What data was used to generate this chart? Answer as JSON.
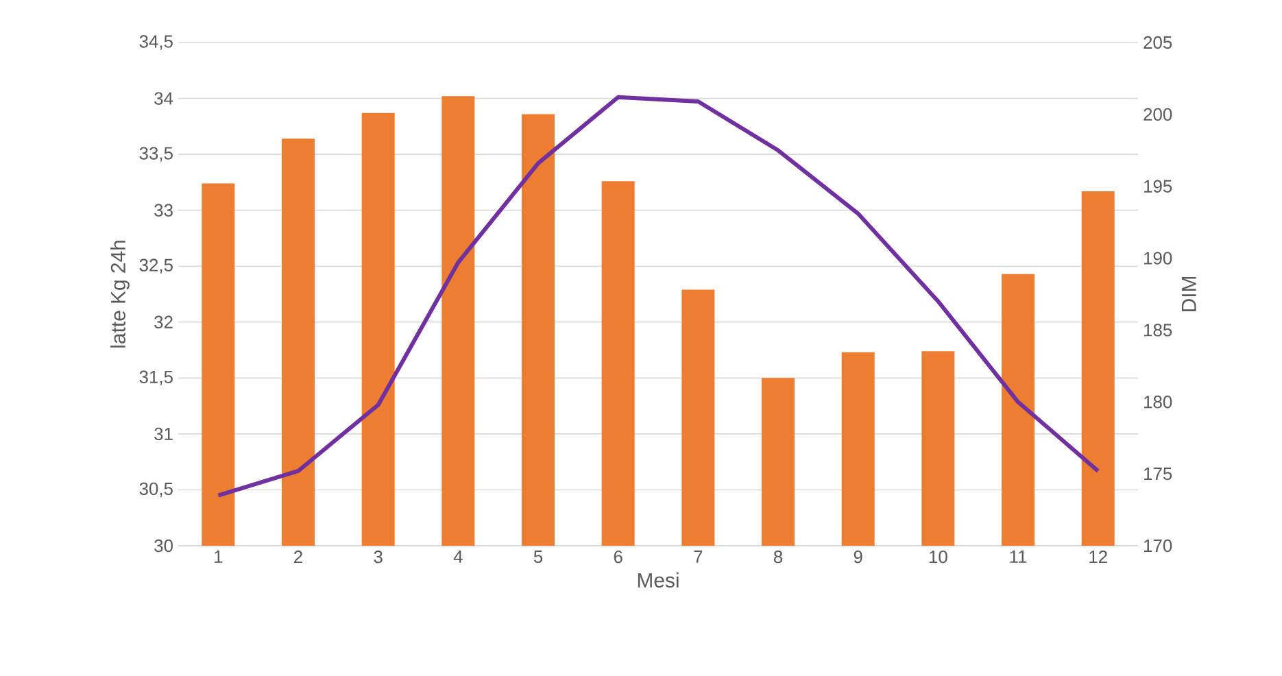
{
  "chart_data": {
    "type": "bar",
    "xlabel": "Mesi",
    "ylabel": "latte Kg 24h",
    "y2label": "DIM",
    "categories": [
      "1",
      "2",
      "3",
      "4",
      "5",
      "6",
      "7",
      "8",
      "9",
      "10",
      "11",
      "12"
    ],
    "series": [
      {
        "color": "#ed7d31",
        "values": [
          33.24,
          33.64,
          33.87,
          34.02,
          33.86,
          33.26,
          32.29,
          31.5,
          31.73,
          31.74,
          32.43,
          33.17
        ]
      },
      {
        "type": "line",
        "axis": "y2",
        "color": "#7030a0",
        "values": [
          173.5,
          175.2,
          179.8,
          189.7,
          196.6,
          201.2,
          200.9,
          197.5,
          193.1,
          187.0,
          180.0,
          175.2
        ]
      }
    ],
    "ylim": [
      30,
      34.5
    ],
    "yticks": [
      30,
      {
        "value": 30.5,
        "label": "30,5"
      },
      31,
      {
        "value": 31.5,
        "label": "31,5"
      },
      32,
      {
        "value": 32.5,
        "label": "32,5"
      },
      33,
      {
        "value": 33.5,
        "label": "33,5"
      },
      34,
      {
        "value": 34.5,
        "label": "34,5"
      }
    ],
    "y2lim": [
      170,
      205
    ],
    "y2ticks": [
      170,
      175,
      180,
      185,
      190,
      195,
      200,
      205
    ],
    "grid": "y",
    "marker": "none",
    "line_style": "solid"
  }
}
